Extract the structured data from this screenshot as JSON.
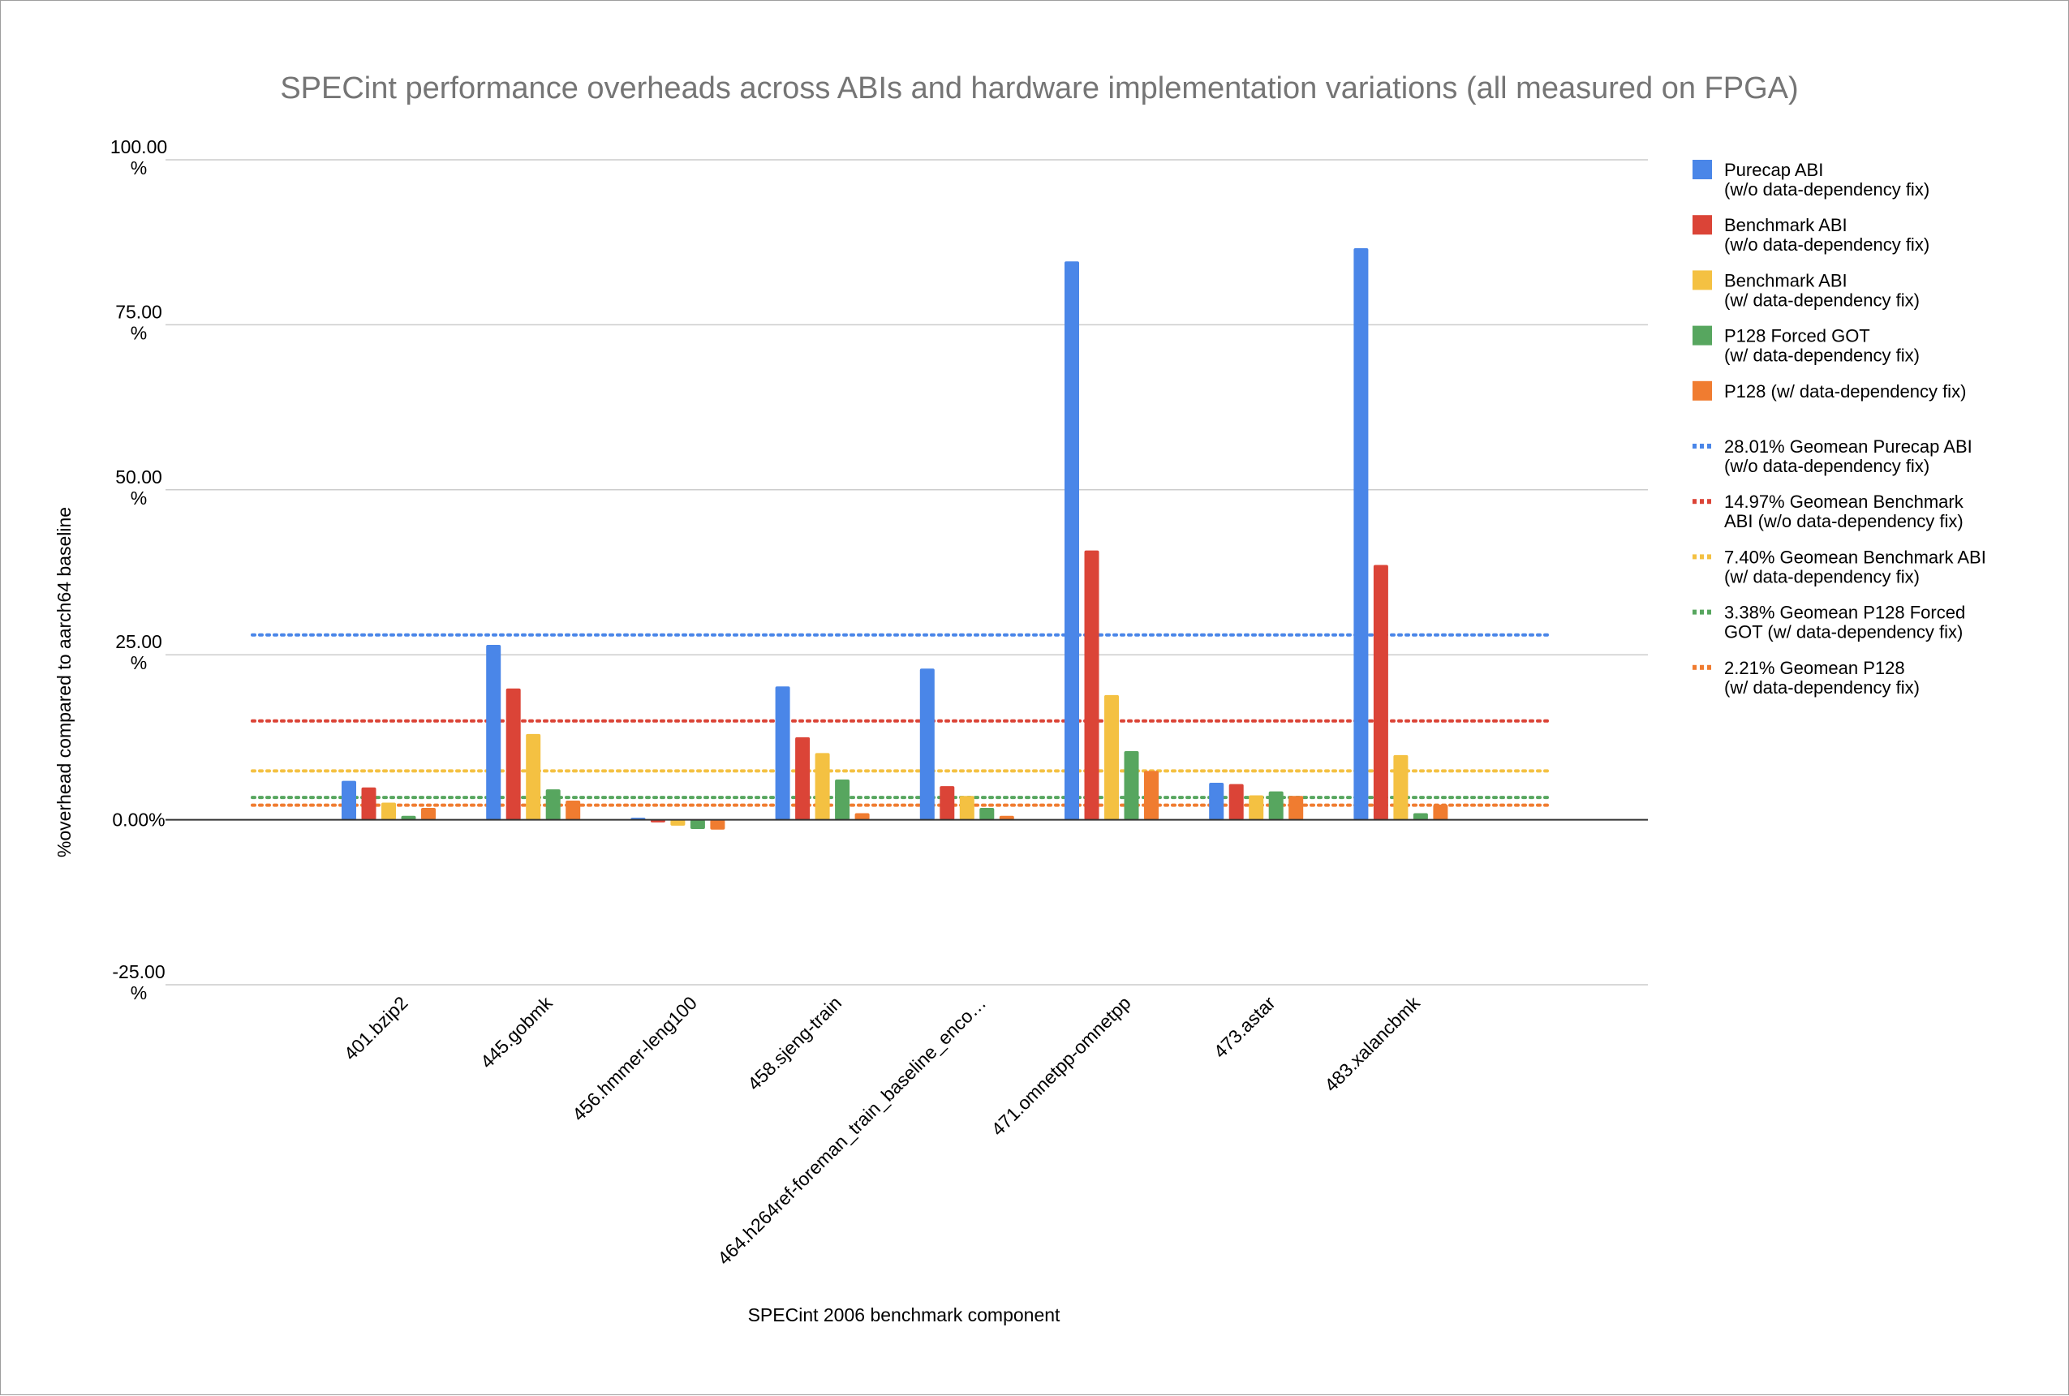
{
  "chart_data": {
    "type": "bar",
    "title": "SPECint performance overheads across ABIs and hardware implementation variations (all measured on FPGA)",
    "xlabel": "SPECint 2006 benchmark component",
    "ylabel": "%overhead compared to aarch64 baseline",
    "ylim": [
      -25,
      100
    ],
    "yticks": [
      {
        "value": 100,
        "label": "100.00 %"
      },
      {
        "value": 75,
        "label": "75.00 %"
      },
      {
        "value": 50,
        "label": "50.00 %"
      },
      {
        "value": 25,
        "label": "25.00 %"
      },
      {
        "value": 0,
        "label": "0.00%"
      },
      {
        "value": -25,
        "label": "-25.00 %"
      }
    ],
    "grid": true,
    "legend_position": "right",
    "categories": [
      "401.bzip2",
      "445.gobmk",
      "456.hmmer-leng100",
      "458.sjeng-train",
      "464.h264ref-foreman_train_baseline_enco…",
      "471.omnetpp-omnetpp",
      "473.astar",
      "483.xalancbmk"
    ],
    "series": [
      {
        "name": "Purecap ABI\n(w/o data-dependency fix)",
        "color": "#4a86e8",
        "values": [
          5.9,
          26.5,
          0.3,
          20.2,
          22.9,
          84.6,
          5.6,
          86.6
        ]
      },
      {
        "name": "Benchmark ABI\n(w/o data-dependency fix)",
        "color": "#db4437",
        "values": [
          4.9,
          19.9,
          -0.4,
          12.5,
          5.1,
          40.8,
          5.4,
          38.6
        ]
      },
      {
        "name": "Benchmark ABI\n(w/ data-dependency fix)",
        "color": "#f4c142",
        "values": [
          2.6,
          13.0,
          -0.9,
          10.1,
          3.6,
          18.9,
          3.7,
          9.8
        ]
      },
      {
        "name": "P128 Forced GOT\n(w/ data-dependency fix)",
        "color": "#57a65f",
        "values": [
          0.6,
          4.6,
          -1.4,
          6.1,
          1.8,
          10.4,
          4.3,
          1.0
        ]
      },
      {
        "name": "P128 (w/ data-dependency fix)",
        "color": "#f07c30",
        "values": [
          1.8,
          2.9,
          -1.5,
          1.0,
          0.6,
          7.4,
          3.6,
          2.3
        ]
      }
    ],
    "reference_lines": [
      {
        "name": "28.01%   Geomean Purecap ABI\n(w/o data-dependency fix)",
        "color": "#4a86e8",
        "value": 28.01
      },
      {
        "name": "14.97%  Geomean Benchmark\nABI (w/o data-dependency fix)",
        "color": "#db4437",
        "value": 14.97
      },
      {
        "name": "7.40%  Geomean Benchmark ABI\n(w/ data-dependency fix)",
        "color": "#f4c142",
        "value": 7.4
      },
      {
        "name": "3.38%  Geomean P128 Forced\nGOT (w/ data-dependency fix)",
        "color": "#57a65f",
        "value": 3.38
      },
      {
        "name": "2.21%  Geomean P128\n(w/ data-dependency fix)",
        "color": "#f07c30",
        "value": 2.21
      }
    ]
  }
}
